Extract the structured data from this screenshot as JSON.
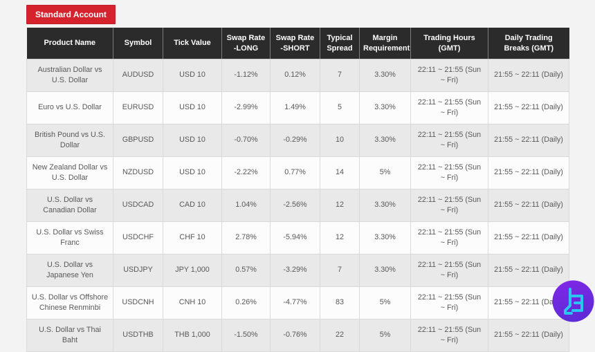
{
  "account_button": {
    "label": "Standard Account",
    "background": "#d5232e",
    "text_color": "#ffffff"
  },
  "table": {
    "header_background": "#2b2b2b",
    "header_text_color": "#ffffff",
    "odd_row_background": "#e9e9e9",
    "even_row_background": "#fcfcfc",
    "columns": [
      "Product Name",
      "Symbol",
      "Tick Value",
      "Swap Rate -LONG",
      "Swap Rate -SHORT",
      "Typical Spread",
      "Margin Requirement",
      "Trading Hours (GMT)",
      "Daily Trading Breaks (GMT)"
    ],
    "rows": [
      [
        "Australian Dollar vs U.S. Dollar",
        "AUDUSD",
        "USD 10",
        "-1.12%",
        "0.12%",
        "7",
        "3.30%",
        "22:11 ~ 21:55 (Sun ~ Fri)",
        "21:55 ~ 22:11 (Daily)"
      ],
      [
        "Euro vs U.S. Dollar",
        "EURUSD",
        "USD 10",
        "-2.99%",
        "1.49%",
        "5",
        "3.30%",
        "22:11 ~ 21:55 (Sun ~ Fri)",
        "21:55 ~ 22:11 (Daily)"
      ],
      [
        "British Pound vs U.S. Dollar",
        "GBPUSD",
        "USD 10",
        "-0.70%",
        "-0.29%",
        "10",
        "3.30%",
        "22:11 ~ 21:55 (Sun ~ Fri)",
        "21:55 ~ 22:11 (Daily)"
      ],
      [
        "New Zealand Dollar vs U.S. Dollar",
        "NZDUSD",
        "USD 10",
        "-2.22%",
        "0.77%",
        "14",
        "5%",
        "22:11 ~ 21:55 (Sun ~ Fri)",
        "21:55 ~ 22:11 (Daily)"
      ],
      [
        "U.S. Dollar vs Canadian Dollar",
        "USDCAD",
        "CAD 10",
        "1.04%",
        "-2.56%",
        "12",
        "3.30%",
        "22:11 ~ 21:55 (Sun ~ Fri)",
        "21:55 ~ 22:11 (Daily)"
      ],
      [
        "U.S. Dollar vs Swiss Franc",
        "USDCHF",
        "CHF 10",
        "2.78%",
        "-5.94%",
        "12",
        "3.30%",
        "22:11 ~ 21:55 (Sun ~ Fri)",
        "21:55 ~ 22:11 (Daily)"
      ],
      [
        "U.S. Dollar vs Japanese Yen",
        "USDJPY",
        "JPY 1,000",
        "0.57%",
        "-3.29%",
        "7",
        "3.30%",
        "22:11 ~ 21:55 (Sun ~ Fri)",
        "21:55 ~ 22:11 (Daily)"
      ],
      [
        "U.S. Dollar vs Offshore Chinese Renminbi",
        "USDCNH",
        "CNH 10",
        "0.26%",
        "-4.77%",
        "83",
        "5%",
        "22:11 ~ 21:55 (Sun ~ Fri)",
        "21:55 ~ 22:11 (Daily)"
      ],
      [
        "U.S. Dollar vs Thai Baht",
        "USDTHB",
        "THB 1,000",
        "-1.50%",
        "-0.76%",
        "22",
        "5%",
        "22:11 ~ 21:55 (Sun ~ Fri)",
        "21:55 ~ 22:11 (Daily)"
      ]
    ]
  },
  "logo": {
    "icon": "brand-logo",
    "circle_color_top": "#8128e6",
    "circle_color_bottom": "#5f2ad8",
    "glyph_color": "#2ac6f2"
  }
}
